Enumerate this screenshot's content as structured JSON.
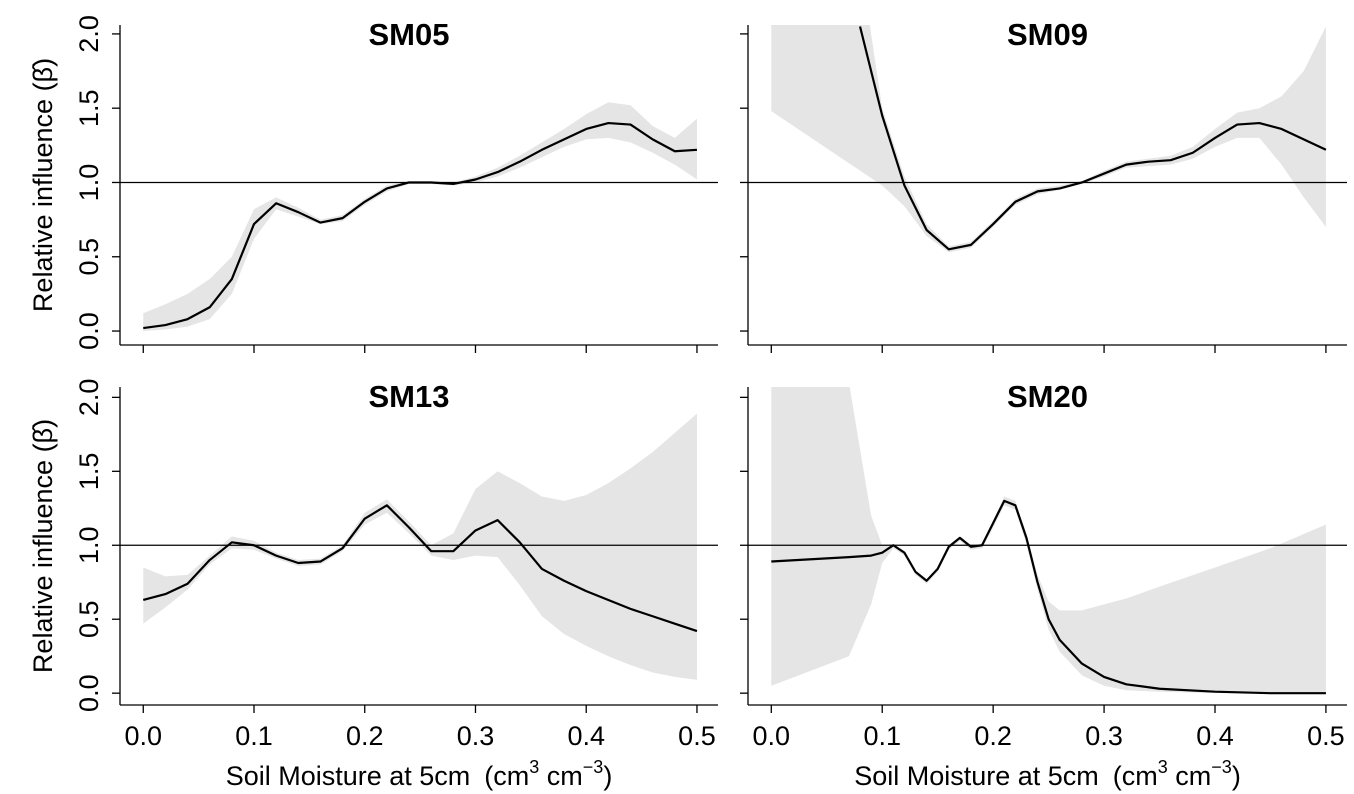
{
  "chart_data": [
    {
      "type": "line",
      "title": "SM05",
      "ylabel": "Relative influence (β̂)",
      "x": [
        0,
        0.02,
        0.04,
        0.06,
        0.08,
        0.1,
        0.12,
        0.14,
        0.16,
        0.18,
        0.2,
        0.22,
        0.24,
        0.26,
        0.28,
        0.3,
        0.32,
        0.34,
        0.36,
        0.38,
        0.4,
        0.42,
        0.44,
        0.46,
        0.48,
        0.5
      ],
      "values": [
        0.02,
        0.04,
        0.08,
        0.16,
        0.35,
        0.72,
        0.86,
        0.8,
        0.73,
        0.76,
        0.87,
        0.96,
        1.0,
        1.0,
        0.99,
        1.02,
        1.07,
        1.14,
        1.22,
        1.29,
        1.36,
        1.4,
        1.39,
        1.29,
        1.21,
        1.22
      ],
      "lower": [
        0.0,
        0.01,
        0.03,
        0.08,
        0.25,
        0.62,
        0.82,
        0.77,
        0.72,
        0.74,
        0.85,
        0.94,
        0.99,
        0.99,
        0.98,
        1.0,
        1.04,
        1.1,
        1.17,
        1.24,
        1.29,
        1.3,
        1.27,
        1.2,
        1.12,
        1.02
      ],
      "upper": [
        0.12,
        0.18,
        0.25,
        0.35,
        0.5,
        0.82,
        0.9,
        0.83,
        0.75,
        0.78,
        0.89,
        0.98,
        1.01,
        1.01,
        1.0,
        1.04,
        1.1,
        1.18,
        1.27,
        1.36,
        1.46,
        1.54,
        1.52,
        1.38,
        1.3,
        1.43
      ],
      "color": "#000000",
      "band_color": "#e5e5e5",
      "hline": 1,
      "xlim": [
        -0.021,
        0.519
      ],
      "ylim": [
        -0.094,
        2.06
      ],
      "xticks": [
        {
          "value": 0,
          "label": "0.0"
        },
        0.1,
        0.2,
        0.3,
        0.4,
        0.5
      ],
      "yticks": [
        {
          "value": 0,
          "label": "0.0"
        },
        0.5,
        {
          "value": 1,
          "label": "1.0"
        },
        1.5,
        {
          "value": 2,
          "label": "2.0"
        }
      ]
    },
    {
      "type": "line",
      "title": "SM09",
      "x": [
        0,
        0.02,
        0.04,
        0.06,
        0.08,
        0.1,
        0.12,
        0.14,
        0.16,
        0.18,
        0.2,
        0.22,
        0.24,
        0.26,
        0.28,
        0.3,
        0.32,
        0.34,
        0.36,
        0.38,
        0.4,
        0.42,
        0.44,
        0.46,
        0.48,
        0.5
      ],
      "values": [
        null,
        null,
        null,
        null,
        2.05,
        1.45,
        0.98,
        0.68,
        0.55,
        0.58,
        0.72,
        0.87,
        0.94,
        0.96,
        1.0,
        1.06,
        1.12,
        1.14,
        1.15,
        1.2,
        1.3,
        1.39,
        1.4,
        1.36,
        1.29,
        1.22
      ],
      "lower": [
        1.48,
        1.38,
        1.28,
        1.18,
        1.08,
        0.98,
        0.84,
        0.64,
        0.53,
        0.56,
        0.7,
        0.85,
        0.92,
        0.95,
        0.99,
        1.04,
        1.1,
        1.11,
        1.12,
        1.16,
        1.24,
        1.3,
        1.3,
        1.12,
        0.9,
        0.7
      ],
      "upper": [
        2.5,
        2.5,
        2.5,
        2.5,
        2.5,
        1.5,
        1.04,
        0.72,
        0.57,
        0.6,
        0.74,
        0.89,
        0.96,
        0.98,
        1.01,
        1.08,
        1.14,
        1.16,
        1.18,
        1.24,
        1.36,
        1.47,
        1.5,
        1.58,
        1.75,
        2.05
      ],
      "color": "#000000",
      "band_color": "#e5e5e5",
      "hline": 1,
      "xlim": [
        -0.021,
        0.519
      ],
      "ylim": [
        -0.094,
        2.06
      ],
      "xticks": [
        {
          "value": 0,
          "label": "0.0"
        },
        0.1,
        0.2,
        0.3,
        0.4,
        0.5
      ],
      "yticks": [
        {
          "value": 0,
          "label": "0.0"
        },
        0.5,
        {
          "value": 1,
          "label": "1.0"
        },
        1.5,
        {
          "value": 2,
          "label": "2.0"
        }
      ]
    },
    {
      "type": "line",
      "title": "SM13",
      "ylabel": "Relative influence (β̂)",
      "xlabel": {
        "text": "Soil Moisture at 5cm",
        "unit": "(cm",
        "exp1": "3",
        "unit2": " cm",
        "exp2": "−3",
        "close": ")"
      },
      "x": [
        0,
        0.02,
        0.04,
        0.06,
        0.08,
        0.1,
        0.12,
        0.14,
        0.16,
        0.18,
        0.2,
        0.22,
        0.24,
        0.26,
        0.28,
        0.3,
        0.32,
        0.34,
        0.36,
        0.38,
        0.4,
        0.42,
        0.44,
        0.46,
        0.48,
        0.5
      ],
      "values": [
        0.63,
        0.67,
        0.74,
        0.9,
        1.02,
        1.0,
        0.93,
        0.88,
        0.89,
        0.98,
        1.18,
        1.27,
        1.12,
        0.96,
        0.96,
        1.1,
        1.17,
        1.02,
        0.84,
        0.76,
        0.69,
        0.63,
        0.57,
        0.52,
        0.47,
        0.42
      ],
      "lower": [
        0.47,
        0.58,
        0.7,
        0.87,
        0.98,
        0.97,
        0.91,
        0.86,
        0.87,
        0.96,
        1.14,
        1.22,
        1.08,
        0.93,
        0.9,
        0.93,
        0.92,
        0.73,
        0.52,
        0.4,
        0.32,
        0.25,
        0.19,
        0.14,
        0.11,
        0.09
      ],
      "upper": [
        0.85,
        0.79,
        0.8,
        0.93,
        1.06,
        1.03,
        0.95,
        0.9,
        0.91,
        1.0,
        1.22,
        1.31,
        1.16,
        1.0,
        1.08,
        1.38,
        1.5,
        1.42,
        1.33,
        1.3,
        1.34,
        1.42,
        1.52,
        1.63,
        1.76,
        1.89
      ],
      "color": "#000000",
      "band_color": "#e5e5e5",
      "hline": 1,
      "xlim": [
        -0.021,
        0.519
      ],
      "ylim": [
        -0.08,
        2.07
      ],
      "xticks": [
        {
          "value": 0,
          "label": "0.0"
        },
        0.1,
        0.2,
        0.3,
        0.4,
        0.5
      ],
      "yticks": [
        {
          "value": 0,
          "label": "0.0"
        },
        0.5,
        {
          "value": 1,
          "label": "1.0"
        },
        1.5,
        {
          "value": 2,
          "label": "2.0"
        }
      ]
    },
    {
      "type": "line",
      "title": "SM20",
      "xlabel": {
        "text": "Soil Moisture at 5cm",
        "unit": "(cm",
        "exp1": "3",
        "unit2": " cm",
        "exp2": "−3",
        "close": ")"
      },
      "x": [
        0,
        0.07,
        0.09,
        0.1,
        0.11,
        0.12,
        0.13,
        0.14,
        0.15,
        0.16,
        0.17,
        0.18,
        0.19,
        0.2,
        0.21,
        0.22,
        0.23,
        0.24,
        0.25,
        0.26,
        0.28,
        0.3,
        0.32,
        0.35,
        0.4,
        0.45,
        0.5
      ],
      "values": [
        0.89,
        0.92,
        0.93,
        0.95,
        1.0,
        0.95,
        0.82,
        0.76,
        0.84,
        0.99,
        1.05,
        0.99,
        1.0,
        1.15,
        1.3,
        1.27,
        1.05,
        0.75,
        0.5,
        0.36,
        0.2,
        0.11,
        0.06,
        0.03,
        0.01,
        0.0,
        0.0
      ],
      "lower": [
        0.05,
        0.25,
        0.6,
        0.88,
        0.98,
        0.93,
        0.8,
        0.74,
        0.82,
        0.97,
        1.03,
        0.97,
        0.98,
        1.12,
        1.27,
        1.24,
        1.01,
        0.7,
        0.43,
        0.28,
        0.12,
        0.05,
        0.02,
        0.01,
        0.0,
        0.0,
        0.0
      ],
      "upper": [
        2.5,
        2.1,
        1.2,
        1.0,
        1.01,
        0.96,
        0.83,
        0.77,
        0.85,
        1.0,
        1.06,
        1.0,
        1.01,
        1.17,
        1.33,
        1.3,
        1.08,
        0.8,
        0.62,
        0.56,
        0.56,
        0.6,
        0.64,
        0.72,
        0.85,
        0.98,
        1.14
      ],
      "color": "#000000",
      "band_color": "#e5e5e5",
      "hline": 1,
      "xlim": [
        -0.021,
        0.519
      ],
      "ylim": [
        -0.08,
        2.07
      ],
      "xticks": [
        {
          "value": 0,
          "label": "0.0"
        },
        0.1,
        0.2,
        0.3,
        0.4,
        0.5
      ],
      "yticks": [
        {
          "value": 0,
          "label": "0.0"
        },
        0.5,
        {
          "value": 1,
          "label": "1.0"
        },
        1.5,
        {
          "value": 2,
          "label": "2.0"
        }
      ]
    }
  ]
}
